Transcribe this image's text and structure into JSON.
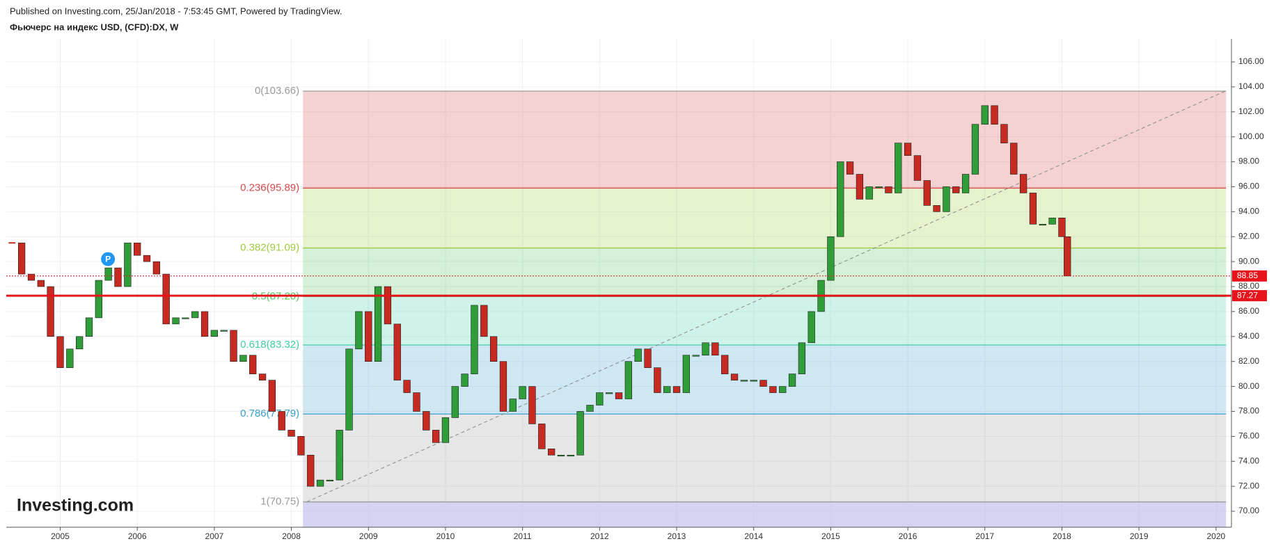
{
  "header": {
    "published": "Published on Investing.com, 25/Jan/2018 - 7:53:45 GMT, Powered by TradingView.",
    "symbol": "Фьючерс на индекс USD, (CFD):DX, W"
  },
  "chart_data": {
    "type": "candlestick",
    "watermark": "Investing.com",
    "xlim": [
      2004.3,
      2020.2
    ],
    "ylim": [
      68.72,
      107.84
    ],
    "xticks": [
      2005,
      2006,
      2007,
      2008,
      2009,
      2010,
      2011,
      2012,
      2013,
      2014,
      2015,
      2016,
      2017,
      2018,
      2019,
      2020
    ],
    "yticks": [
      {
        "value": 70,
        "label": "70.00"
      },
      {
        "value": 72,
        "label": "72.00"
      },
      {
        "value": 74,
        "label": "74.00"
      },
      {
        "value": 76,
        "label": "76.00"
      },
      {
        "value": 78,
        "label": "78.00"
      },
      {
        "value": 80,
        "label": "80.00"
      },
      {
        "value": 82,
        "label": "82.00"
      },
      {
        "value": 84,
        "label": "84.00"
      },
      {
        "value": 86,
        "label": "86.00"
      },
      {
        "value": 88,
        "label": "88.00"
      },
      {
        "value": 90,
        "label": "90.00"
      },
      {
        "value": 92,
        "label": "92.00"
      },
      {
        "value": 94,
        "label": "94.00"
      },
      {
        "value": 96,
        "label": "96.00"
      },
      {
        "value": 98,
        "label": "98.00"
      },
      {
        "value": 100,
        "label": "100.00"
      },
      {
        "value": 102,
        "label": "102.00"
      },
      {
        "value": 104,
        "label": "104.00"
      },
      {
        "value": 106,
        "label": "106.00"
      }
    ],
    "grid": true,
    "up_color": "#2f9e38",
    "down_color": "#c62a20",
    "x": [
      2004.375,
      2004.5,
      2004.625,
      2004.75,
      2004.875,
      2005.0,
      2005.125,
      2005.25,
      2005.375,
      2005.5,
      2005.625,
      2005.75,
      2005.875,
      2006.0,
      2006.125,
      2006.25,
      2006.375,
      2006.5,
      2006.625,
      2006.75,
      2006.875,
      2007.0,
      2007.125,
      2007.25,
      2007.375,
      2007.5,
      2007.625,
      2007.75,
      2007.875,
      2008.0,
      2008.125,
      2008.25,
      2008.375,
      2008.5,
      2008.625,
      2008.75,
      2008.875,
      2009.0,
      2009.125,
      2009.25,
      2009.375,
      2009.5,
      2009.625,
      2009.75,
      2009.875,
      2010.0,
      2010.125,
      2010.25,
      2010.375,
      2010.5,
      2010.625,
      2010.75,
      2010.875,
      2011.0,
      2011.125,
      2011.25,
      2011.375,
      2011.5,
      2011.625,
      2011.75,
      2011.875,
      2012.0,
      2012.125,
      2012.25,
      2012.375,
      2012.5,
      2012.625,
      2012.75,
      2012.875,
      2013.0,
      2013.125,
      2013.25,
      2013.375,
      2013.5,
      2013.625,
      2013.75,
      2013.875,
      2014.0,
      2014.125,
      2014.25,
      2014.375,
      2014.5,
      2014.625,
      2014.75,
      2014.875,
      2015.0,
      2015.125,
      2015.25,
      2015.375,
      2015.5,
      2015.625,
      2015.75,
      2015.875,
      2016.0,
      2016.125,
      2016.25,
      2016.375,
      2016.5,
      2016.625,
      2016.75,
      2016.875,
      2017.0,
      2017.125,
      2017.25,
      2017.375,
      2017.5,
      2017.625,
      2017.75,
      2017.875,
      2018.0,
      2018.07
    ],
    "series": [
      {
        "name": "DX",
        "values": [
          91.5,
          89,
          88.5,
          88,
          84,
          81.5,
          83,
          84,
          85.5,
          88.5,
          89.5,
          88,
          91.5,
          90.5,
          90,
          89,
          85,
          85.5,
          85.5,
          86,
          84,
          84.5,
          84.5,
          82,
          82.5,
          81,
          80.5,
          78,
          76.5,
          76,
          74.5,
          72,
          72.5,
          72.5,
          76.5,
          83,
          86,
          82,
          88,
          85,
          80.5,
          79.5,
          78,
          76.5,
          75.5,
          77.5,
          80,
          81,
          86.5,
          84,
          82,
          78,
          79,
          80,
          77,
          75,
          74.5,
          74.5,
          74.5,
          78,
          78.5,
          79.5,
          79.5,
          79,
          82,
          83,
          81.5,
          79.5,
          80,
          79.5,
          82.5,
          82.5,
          83.5,
          82.5,
          81,
          80.5,
          80.5,
          80.5,
          80,
          79.5,
          80,
          81,
          83.5,
          86,
          88.5,
          92,
          98,
          97,
          95,
          96,
          96,
          95.5,
          99.5,
          98.5,
          96.5,
          94.5,
          94,
          96,
          95.5,
          97,
          101,
          102.5,
          101,
          99.5,
          97,
          95.5,
          93,
          93,
          93.5,
          92,
          88.85
        ]
      }
    ],
    "fibonacci": {
      "x_start": 2008.15,
      "x_end": 2020.13,
      "below_color": "#b9b6ea",
      "levels": [
        {
          "label": "0(103.66)",
          "value": 103.66,
          "color": "#9a9a9a"
        },
        {
          "label": "0.236(95.89)",
          "value": 95.89,
          "color": "#d94a4a"
        },
        {
          "label": "0.382(91.09)",
          "value": 91.09,
          "color": "#9ccc3c"
        },
        {
          "label": "0.5(87.20)",
          "value": 87.2,
          "color": "#52c25a"
        },
        {
          "label": "0.618(83.32)",
          "value": 83.32,
          "color": "#3fcfa6"
        },
        {
          "label": "0.786(77.79)",
          "value": 77.79,
          "color": "#3a9fcf"
        },
        {
          "label": "1(70.75)",
          "value": 70.75,
          "color": "#9a9a9a"
        }
      ]
    },
    "trend_line": {
      "x": [
        2008.2,
        2020.12
      ],
      "y": [
        70.75,
        103.66
      ],
      "color": "#888888"
    },
    "price_lines": [
      {
        "label": "88.85",
        "value": 88.85,
        "color": "#e8141c",
        "dashed": true
      },
      {
        "label": "87.27",
        "value": 87.27,
        "color": "#e8141c",
        "dashed": false
      }
    ],
    "marker": {
      "label": "P",
      "x": 2005.62,
      "y": 90.2,
      "color": "#2196f3"
    }
  }
}
